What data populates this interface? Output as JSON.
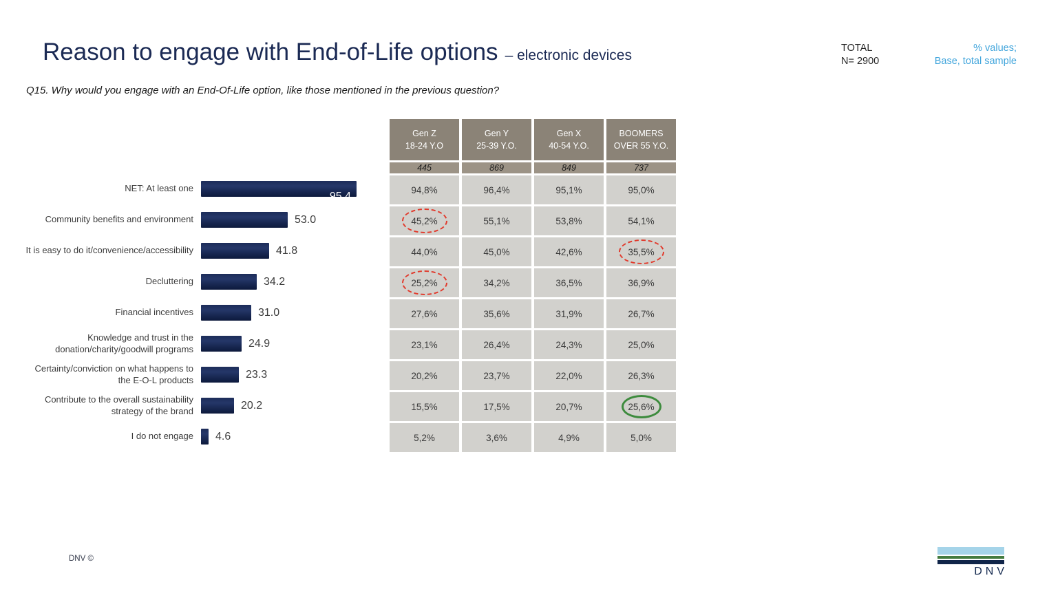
{
  "header": {
    "title": "Reason to engage with End-of-Life options",
    "subtitle": "– electronic devices",
    "total_label": "TOTAL",
    "total_n": "N= 2900",
    "note_line1": "% values;",
    "note_line2": "Base, total sample",
    "accent_blue": "#41a5dc",
    "title_navy": "#1b2a54"
  },
  "question": "Q15. Why would you engage with an End-Of-Life option, like those mentioned in the previous question?",
  "chart_data": {
    "type": "bar",
    "orientation": "horizontal",
    "title": "Reason to engage with End-of-Life options – electronic devices",
    "xlabel": "",
    "ylabel": "",
    "xlim": [
      0,
      100
    ],
    "grid": false,
    "bar_color": "#16254e",
    "categories": [
      "NET: At least one",
      "Community benefits and environment",
      "It is easy to do it/convenience/accessibility",
      "Decluttering",
      "Financial incentives",
      "Knowledge and trust in the donation/charity/goodwill programs",
      "Certainty/conviction on what happens to the E-O-L products",
      "Contribute to the overall sustainability strategy of the brand",
      "I do not engage"
    ],
    "values": [
      95.4,
      53.0,
      41.8,
      34.2,
      31.0,
      24.9,
      23.3,
      20.2,
      4.6
    ],
    "value_labels": [
      "95.4",
      "53.0",
      "41.8",
      "34.2",
      "31.0",
      "24.9",
      "23.3",
      "20.2",
      "4.6"
    ],
    "inside_value_label_indices": [
      0
    ]
  },
  "table": {
    "columns": [
      {
        "name": "Gen Z",
        "age": "18-24 Y.O",
        "base": "445"
      },
      {
        "name": "Gen Y",
        "age": "25-39 Y.O.",
        "base": "869"
      },
      {
        "name": "Gen X",
        "age": "40-54 Y.O.",
        "base": "849"
      },
      {
        "name": "BOOMERS",
        "age": "OVER 55 Y.O.",
        "base": "737"
      }
    ],
    "rows": [
      [
        "94,8%",
        "96,4%",
        "95,1%",
        "95,0%"
      ],
      [
        "45,2%",
        "55,1%",
        "53,8%",
        "54,1%"
      ],
      [
        "44,0%",
        "45,0%",
        "42,6%",
        "35,5%"
      ],
      [
        "25,2%",
        "34,2%",
        "36,5%",
        "36,9%"
      ],
      [
        "27,6%",
        "35,6%",
        "31,9%",
        "26,7%"
      ],
      [
        "23,1%",
        "26,4%",
        "24,3%",
        "25,0%"
      ],
      [
        "20,2%",
        "23,7%",
        "22,0%",
        "26,3%"
      ],
      [
        "15,5%",
        "17,5%",
        "20,7%",
        "25,6%"
      ],
      [
        "5,2%",
        "3,6%",
        "4,9%",
        "5,0%"
      ]
    ],
    "annotations": [
      {
        "row": 1,
        "col": 0,
        "style": "red-dashed"
      },
      {
        "row": 2,
        "col": 3,
        "style": "red-dashed"
      },
      {
        "row": 3,
        "col": 0,
        "style": "red-dashed"
      },
      {
        "row": 7,
        "col": 3,
        "style": "green-solid"
      }
    ],
    "colors": {
      "header_bg": "#8b8377",
      "base_bg": "#9c9386",
      "cell_bg": "#d2d1cd",
      "red_circle": "#e13a2c",
      "green_circle": "#3d8b3d"
    }
  },
  "footer": {
    "copyright": "DNV ©",
    "logo_text": "DNV",
    "logo_colors": {
      "blue": "#a5d4e9",
      "green": "#447c40",
      "navy": "#102549"
    }
  }
}
